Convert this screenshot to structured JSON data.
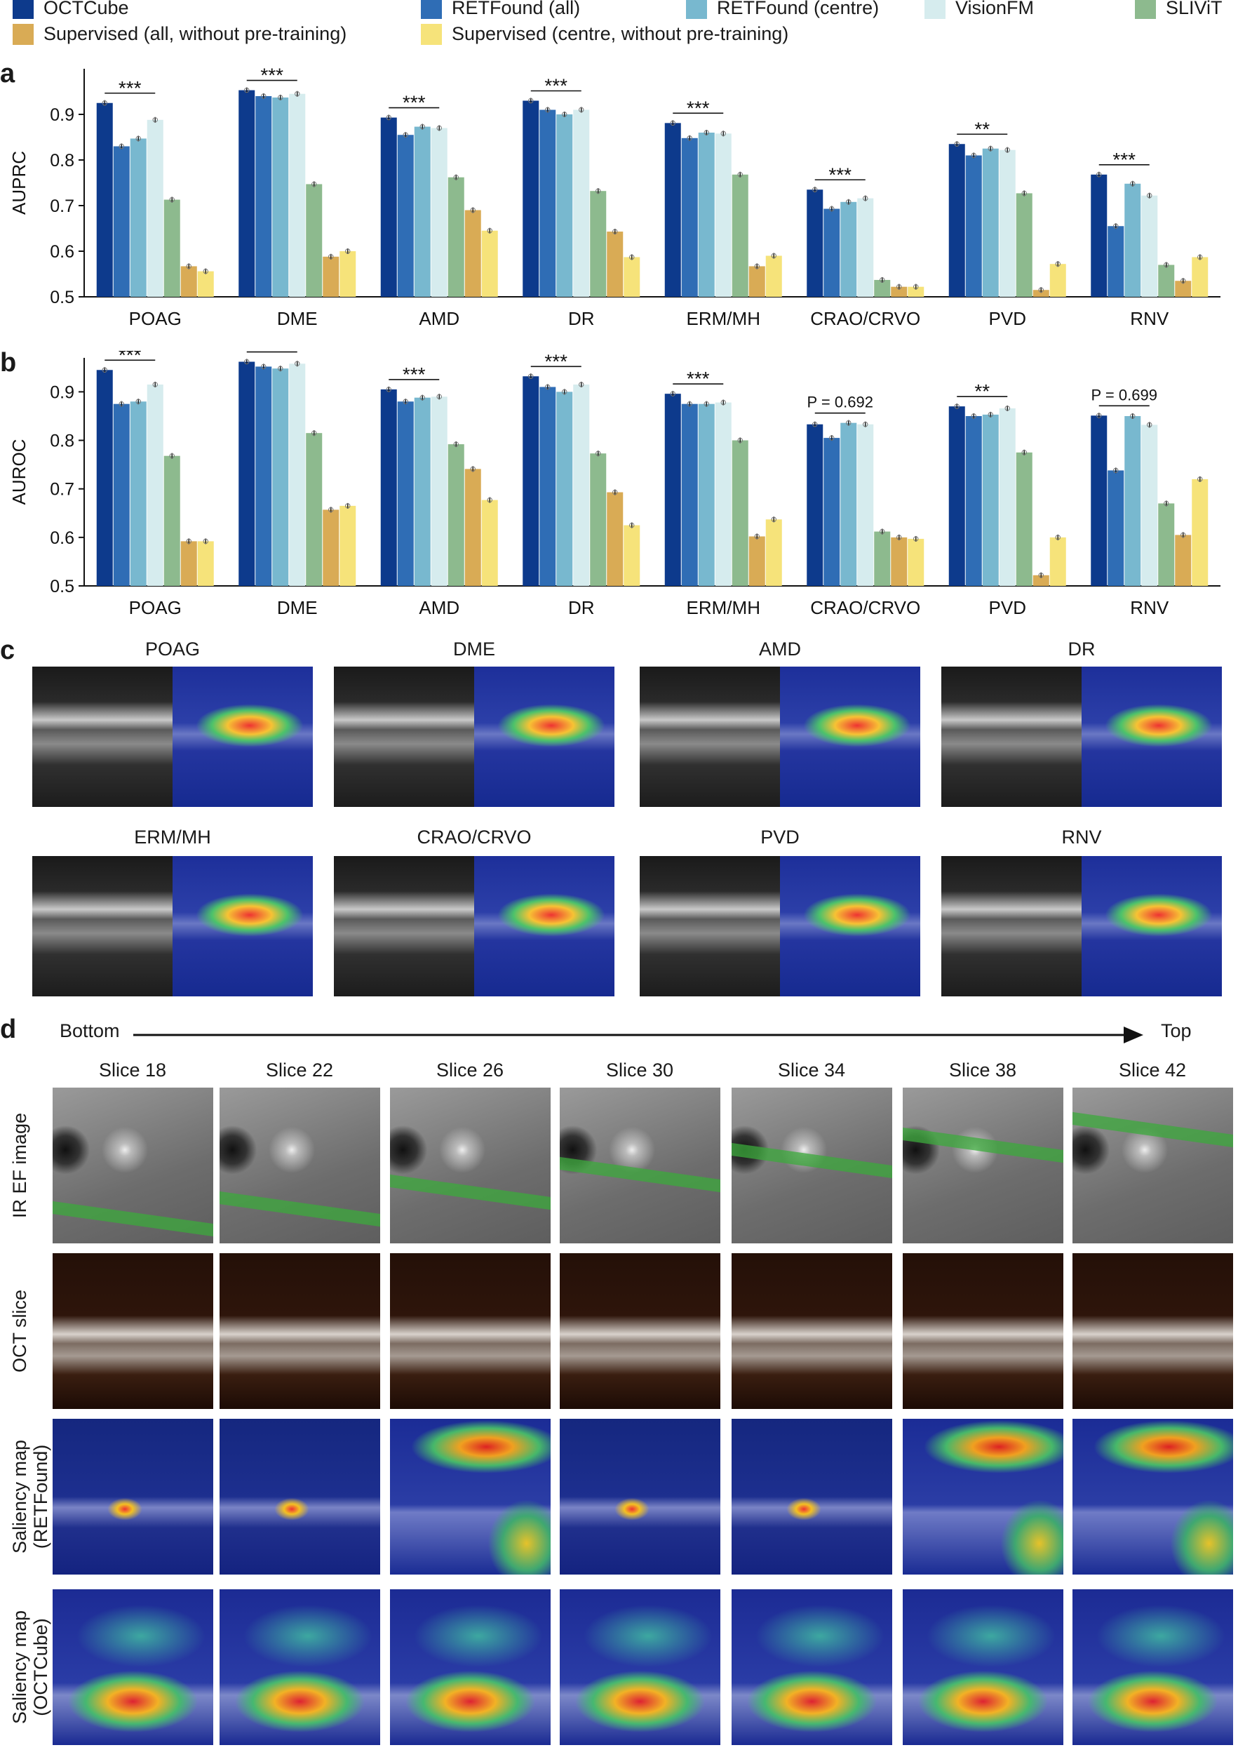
{
  "legend": [
    {
      "label": "OCTCube",
      "color": "#0d3a8c"
    },
    {
      "label": "RETFound (all)",
      "color": "#2f6db5"
    },
    {
      "label": "RETFound (centre)",
      "color": "#78b8cf"
    },
    {
      "label": "VisionFM",
      "color": "#d6ecee"
    },
    {
      "label": "SLIViT",
      "color": "#8dba8e"
    },
    {
      "label": "Supervised (all, without pre-training)",
      "color": "#d9ab55"
    },
    {
      "label": "Supervised (centre, without pre-training)",
      "color": "#f6e37a"
    }
  ],
  "panels": {
    "a": "a",
    "b": "b",
    "c": "c",
    "d": "d"
  },
  "chart_data": [
    {
      "type": "bar",
      "panel": "a",
      "ylabel": "AUPRC",
      "ylim": [
        0.5,
        1.0
      ],
      "yticks": [
        "0.5",
        "0.6",
        "0.7",
        "0.8",
        "0.9"
      ],
      "categories": [
        "POAG",
        "DME",
        "AMD",
        "DR",
        "ERM/MH",
        "CRAO/CRVO",
        "PVD",
        "RNV"
      ],
      "series": [
        {
          "name": "OCTCube",
          "values": [
            0.925,
            0.953,
            0.893,
            0.93,
            0.881,
            0.735,
            0.835,
            0.768
          ]
        },
        {
          "name": "RETFound (all)",
          "values": [
            0.83,
            0.94,
            0.855,
            0.91,
            0.848,
            0.693,
            0.81,
            0.655
          ]
        },
        {
          "name": "RETFound (centre)",
          "values": [
            0.847,
            0.937,
            0.873,
            0.9,
            0.86,
            0.708,
            0.825,
            0.748
          ]
        },
        {
          "name": "VisionFM",
          "values": [
            0.888,
            0.945,
            0.87,
            0.91,
            0.858,
            0.716,
            0.822,
            0.722
          ]
        },
        {
          "name": "SLIViT",
          "values": [
            0.713,
            0.747,
            0.762,
            0.732,
            0.768,
            0.537,
            0.727,
            0.57
          ]
        },
        {
          "name": "Supervised (all, without pre-training)",
          "values": [
            0.567,
            0.588,
            0.69,
            0.643,
            0.567,
            0.522,
            0.515,
            0.535
          ]
        },
        {
          "name": "Supervised (centre, without pre-training)",
          "values": [
            0.556,
            0.6,
            0.645,
            0.587,
            0.59,
            0.522,
            0.572,
            0.587
          ]
        }
      ],
      "annotations": [
        "***",
        "***",
        "***",
        "***",
        "***",
        "***",
        "**",
        "***"
      ]
    },
    {
      "type": "bar",
      "panel": "b",
      "ylabel": "AUROC",
      "ylim": [
        0.5,
        0.97
      ],
      "yticks": [
        "0.5",
        "0.6",
        "0.7",
        "0.8",
        "0.9"
      ],
      "categories": [
        "POAG",
        "DME",
        "AMD",
        "DR",
        "ERM/MH",
        "CRAO/CRVO",
        "PVD",
        "RNV"
      ],
      "series": [
        {
          "name": "OCTCube",
          "values": [
            0.945,
            0.962,
            0.905,
            0.932,
            0.896,
            0.833,
            0.87,
            0.851
          ]
        },
        {
          "name": "RETFound (all)",
          "values": [
            0.875,
            0.952,
            0.88,
            0.91,
            0.875,
            0.805,
            0.85,
            0.738
          ]
        },
        {
          "name": "RETFound (centre)",
          "values": [
            0.88,
            0.948,
            0.888,
            0.9,
            0.875,
            0.836,
            0.853,
            0.85
          ]
        },
        {
          "name": "VisionFM",
          "values": [
            0.915,
            0.958,
            0.89,
            0.915,
            0.878,
            0.833,
            0.866,
            0.832
          ]
        },
        {
          "name": "SLIViT",
          "values": [
            0.768,
            0.815,
            0.792,
            0.773,
            0.8,
            0.612,
            0.775,
            0.67
          ]
        },
        {
          "name": "Supervised (all, without pre-training)",
          "values": [
            0.592,
            0.657,
            0.741,
            0.693,
            0.602,
            0.6,
            0.522,
            0.605
          ]
        },
        {
          "name": "Supervised (centre, without pre-training)",
          "values": [
            0.592,
            0.665,
            0.677,
            0.625,
            0.637,
            0.597,
            0.6,
            0.72
          ]
        }
      ],
      "annotations": [
        "***",
        "***",
        "***",
        "***",
        "***",
        "P = 0.692",
        "**",
        "P = 0.699"
      ]
    }
  ],
  "panel_c": {
    "labels": [
      "POAG",
      "DME",
      "AMD",
      "DR",
      "ERM/MH",
      "CRAO/CRVO",
      "PVD",
      "RNV"
    ]
  },
  "panel_d": {
    "axis_start": "Bottom",
    "axis_end": "Top",
    "slices": [
      "Slice 18",
      "Slice 22",
      "Slice 26",
      "Slice 30",
      "Slice 34",
      "Slice 38",
      "Slice 42"
    ],
    "rows": [
      "IR EF image",
      "OCT slice",
      "Saliency map\n(RETFound)",
      "Saliency map\n(OCTCube)"
    ]
  }
}
